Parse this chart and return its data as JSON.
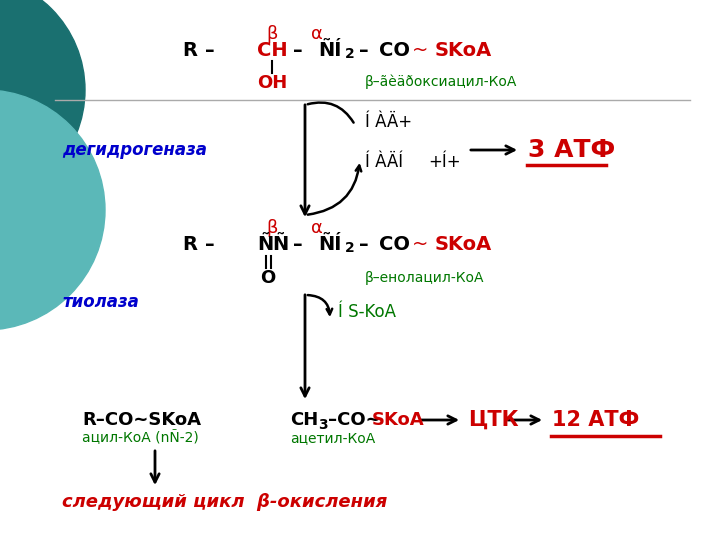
{
  "bg": "#ffffff",
  "teal_dark": "#1a7070",
  "teal_light": "#5bb8b8",
  "black": "#000000",
  "red": "#cc0000",
  "green": "#007700",
  "blue": "#0000cc",
  "garbled_labels": {
    "beta_hydroxy": "β–ãèäðоксиацил-КоА",
    "dehydrogenase": "дегидрогеназа",
    "nad_plus": "Í ÀÄ+",
    "nadh": "Í ÀÄÍ",
    "h_plus": "+Í+",
    "atf3": "3 АТФ",
    "beta_keto": "β–енолацил-КоА",
    "thiolase": "тиолаза",
    "hs_koa": "Í S-KoA",
    "acyl_koa": "ацил-КоА (nÑ-2)",
    "acetyl_koa": "ацетил-КоА",
    "ctk": "ЦТК",
    "atf12": "12 АТФ",
    "next_cycle": "следующий цикл  β-окисления"
  }
}
